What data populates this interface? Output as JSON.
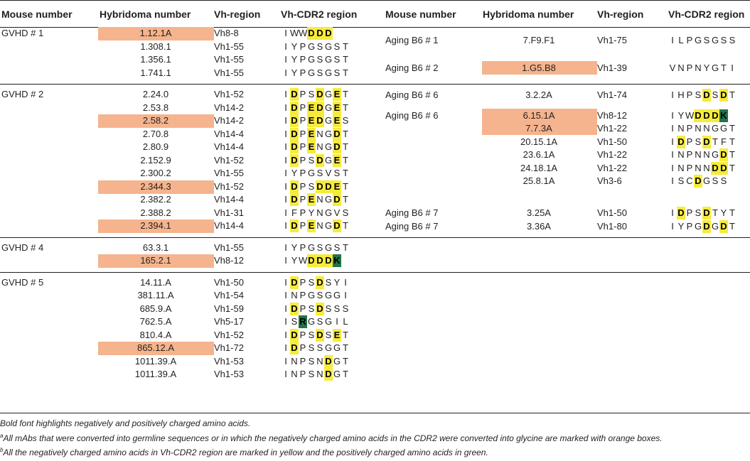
{
  "headers": [
    "Mouse number",
    "Hybridoma number",
    "Vh-region",
    "Vh-CDR2 region",
    "Mouse number",
    "Hybridoma number",
    "Vh-region",
    "Vh-CDR2 region"
  ],
  "left_groups": [
    {
      "mouse": "GVHD # 1",
      "rows": [
        {
          "hyb": "1.12.1A",
          "vh": "Vh8-8",
          "seq": "IWWDDD",
          "hl": "---nnn",
          "orange": true
        },
        {
          "hyb": "1.308.1",
          "vh": "Vh1-55",
          "seq": "IYPGSGST",
          "hl": "--------",
          "orange": false
        },
        {
          "hyb": "1.356.1",
          "vh": "Vh1-55",
          "seq": "IYPGSGST",
          "hl": "--------",
          "orange": false
        },
        {
          "hyb": "1.741.1",
          "vh": "Vh1-55",
          "seq": "IYPGSGST",
          "hl": "--------",
          "orange": false
        }
      ]
    },
    {
      "mouse": "GVHD # 2",
      "rows": [
        {
          "hyb": "2.24.0",
          "vh": "Vh1-52",
          "seq": "IDPSDGET",
          "hl": "-n--n-n-",
          "orange": false
        },
        {
          "hyb": "2.53.8",
          "vh": "Vh14-2",
          "seq": "IDPEDGET",
          "hl": "-n-nn-n-",
          "orange": false
        },
        {
          "hyb": "2.58.2",
          "vh": "Vh14-2",
          "seq": "IDPEDGES",
          "hl": "-n-nn-n-",
          "orange": true
        },
        {
          "hyb": "2.70.8",
          "vh": "Vh14-4",
          "seq": "IDPENGDT",
          "hl": "-n-n--n-",
          "orange": false
        },
        {
          "hyb": "2.80.9",
          "vh": "Vh14-4",
          "seq": "IDPENGDT",
          "hl": "-n-n--n-",
          "orange": false
        },
        {
          "hyb": "2.152.9",
          "vh": "Vh1-52",
          "seq": "IDPSDGET",
          "hl": "-n--n-n-",
          "orange": false
        },
        {
          "hyb": "2.300.2",
          "vh": "Vh1-55",
          "seq": "IYPGSVST",
          "hl": "--------",
          "orange": false
        },
        {
          "hyb": "2.344.3",
          "vh": "Vh1-52",
          "seq": "IDPSDDET",
          "hl": "-n--nnn-",
          "orange": true
        },
        {
          "hyb": "2.382.2",
          "vh": "Vh14-4",
          "seq": "IDPENGDT",
          "hl": "-n-n--n-",
          "orange": false
        },
        {
          "hyb": "2.388.2",
          "vh": "Vh1-31",
          "seq": "IFPYNGVS",
          "hl": "--------",
          "orange": false
        },
        {
          "hyb": "2.394.1",
          "vh": "Vh14-4",
          "seq": "IDPENGDT",
          "hl": "-n-n--n-",
          "orange": true
        }
      ]
    },
    {
      "mouse": "GVHD # 4",
      "rows": [
        {
          "hyb": "63.3.1",
          "vh": "Vh1-55",
          "seq": "IYPGSGST",
          "hl": "--------",
          "orange": false
        },
        {
          "hyb": "165.2.1",
          "vh": "Vh8-12",
          "seq": "IYWDDDK",
          "hl": "---nnnp",
          "orange": true
        }
      ]
    },
    {
      "mouse": "GVHD # 5",
      "rows": [
        {
          "hyb": "14.11.A",
          "vh": "Vh1-50",
          "seq": "IDPSDSYI",
          "hl": "-n--n---",
          "orange": false
        },
        {
          "hyb": "381.11.A",
          "vh": "Vh1-54",
          "seq": "INPGSGGI",
          "hl": "--------",
          "orange": false
        },
        {
          "hyb": "685.9.A",
          "vh": "Vh1-59",
          "seq": "IDPSDSSS",
          "hl": "-n--n---",
          "orange": false
        },
        {
          "hyb": "762.5.A",
          "vh": "Vh5-17",
          "seq": "ISRGSGIL",
          "hl": "--p-----",
          "orange": false
        },
        {
          "hyb": "810.4.A",
          "vh": "Vh1-52",
          "seq": "IDPSDSET",
          "hl": "-n--n-n-",
          "orange": false
        },
        {
          "hyb": "865.12.A",
          "vh": "Vh1-72",
          "seq": "IDPSSGGT",
          "hl": "-n------",
          "orange": true
        },
        {
          "hyb": "1011.39.A",
          "vh": "Vh1-53",
          "seq": "INPSNDGT",
          "hl": "-----n--",
          "orange": false
        },
        {
          "hyb": "1011.39.A",
          "vh": "Vh1-53",
          "seq": "INPSNDGT",
          "hl": "-----n--",
          "orange": false
        }
      ]
    }
  ],
  "right_rows": [
    {
      "mouse": "Aging B6 # 1",
      "hyb": "7.F9.F1",
      "vh": "Vh1-75",
      "seq": "ILPGSGSS",
      "hl": "--------",
      "orange": false
    },
    {
      "mouse": "Aging B6 # 2",
      "hyb": "1.G5.B8",
      "vh": "Vh1-39",
      "seq": "VNPNYGTI",
      "hl": "--------",
      "orange": true
    },
    {
      "mouse": "Aging B6 # 6",
      "hyb": "3.2.2A",
      "vh": "Vh1-74",
      "seq": "IHPSDSDT",
      "hl": "----n-n-",
      "orange": false
    },
    {
      "mouse": "Aging B6 # 6",
      "hyb": "6.15.1A",
      "vh": "Vh8-12",
      "seq": "IYWDDDK",
      "hl": "---nnnp",
      "orange": true
    },
    {
      "mouse": "",
      "hyb": "7.7.3A",
      "vh": "Vh1-22",
      "seq": "INPNNGGT",
      "hl": "--------",
      "orange": true
    },
    {
      "mouse": "",
      "hyb": "20.15.1A",
      "vh": "Vh1-50",
      "seq": "IDPSDTFT",
      "hl": "-n--n---",
      "orange": false
    },
    {
      "mouse": "",
      "hyb": "23.6.1A",
      "vh": "Vh1-22",
      "seq": "INPNNGDT",
      "hl": "------n-",
      "orange": false
    },
    {
      "mouse": "",
      "hyb": "24.18.1A",
      "vh": "Vh1-22",
      "seq": "INPNNDDT",
      "hl": "-----nn-",
      "orange": false
    },
    {
      "mouse": "",
      "hyb": "25.8.1A",
      "vh": "Vh3-6",
      "seq": "ISCDGSS",
      "hl": "---n---",
      "orange": false
    },
    {
      "mouse": "Aging B6 # 7",
      "hyb": "3.25A",
      "vh": "Vh1-50",
      "seq": "IDPSDTYT",
      "hl": "-n--n---",
      "orange": false
    },
    {
      "mouse": "Aging B6 # 7",
      "hyb": "3.36A",
      "vh": "Vh1-80",
      "seq": "IYPGDGDT",
      "hl": "----n-n-",
      "orange": false
    }
  ],
  "footnotes": [
    {
      "sup": "",
      "text": "Bold font highlights negatively and positively charged amino acids."
    },
    {
      "sup": "a",
      "text": "All mAbs that were converted into germline sequences or in which the negatively charged amino acids in the CDR2 were converted into glycine are marked with orange boxes."
    },
    {
      "sup": "b",
      "text": "All the negatively charged amino acids in Vh-CDR2 region are marked in yellow and the positively charged amino acids in green."
    }
  ],
  "colors": {
    "orange_box": "#f5b48d",
    "negative_yellow": "#f6eb3c",
    "positive_green": "#20744a",
    "rule": "#231f20"
  }
}
